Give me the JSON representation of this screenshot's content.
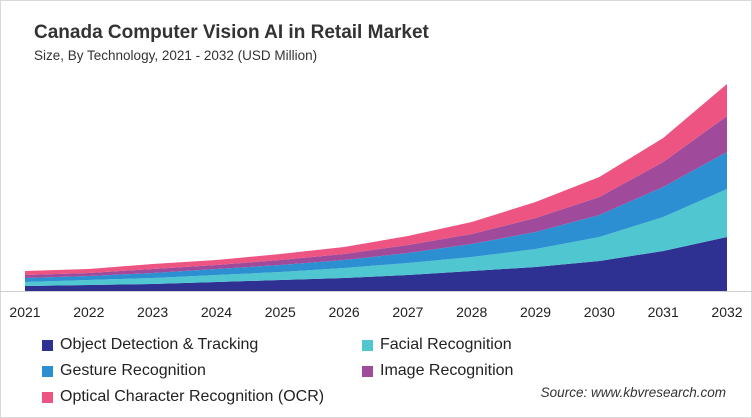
{
  "chart_data": {
    "type": "area",
    "stacked": true,
    "title": "Canada Computer Vision AI in Retail Market",
    "subtitle": "Size, By Technology, 2021 - 2032 (USD Million)",
    "xlabel": "",
    "ylabel": "",
    "categories": [
      "2021",
      "2022",
      "2023",
      "2024",
      "2025",
      "2026",
      "2027",
      "2028",
      "2029",
      "2030",
      "2031",
      "2032"
    ],
    "grid": false,
    "legend_position": "bottom",
    "series": [
      {
        "name": "Object Detection & Tracking",
        "color": "#2e3192",
        "values": [
          5,
          6,
          7,
          9,
          11,
          13,
          16,
          20,
          24,
          30,
          40,
          54
        ]
      },
      {
        "name": "Facial Recognition",
        "color": "#4fc6d0",
        "values": [
          4,
          5,
          6,
          7,
          8,
          10,
          12,
          14,
          18,
          24,
          34,
          48
        ]
      },
      {
        "name": "Gesture Recognition",
        "color": "#2b8fd1",
        "values": [
          4,
          4,
          5,
          6,
          7,
          8,
          10,
          13,
          17,
          22,
          30,
          37
        ]
      },
      {
        "name": "Image Recognition",
        "color": "#a04a9c",
        "values": [
          3,
          3,
          4,
          4,
          5,
          6,
          8,
          10,
          14,
          18,
          25,
          36
        ]
      },
      {
        "name": "Optical Character Recognition (OCR)",
        "color": "#ee5482",
        "values": [
          4,
          4,
          5,
          5,
          6,
          7,
          9,
          12,
          16,
          20,
          24,
          32
        ]
      }
    ],
    "source": "Source: www.kbvresearch.com"
  }
}
